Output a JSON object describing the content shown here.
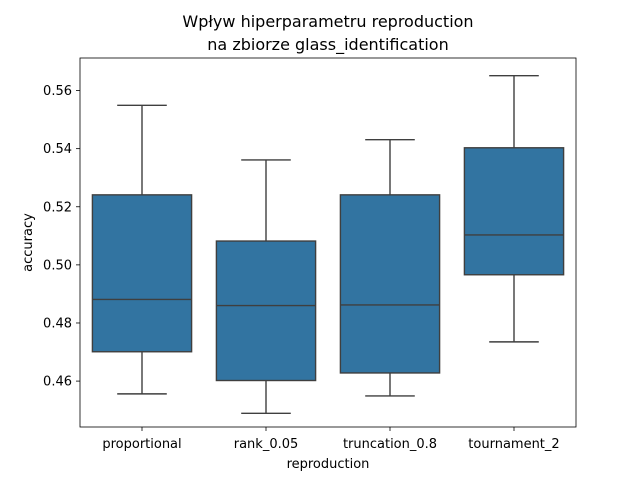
{
  "chart_data": {
    "type": "box",
    "title_lines": [
      "Wpływ hiperparametru reproduction",
      "na zbiorze glass_identification"
    ],
    "xlabel": "reproduction",
    "ylabel": "accuracy",
    "ylim": [
      0.4442,
      0.5712
    ],
    "yticks": [
      0.46,
      0.48,
      0.5,
      0.52,
      0.54,
      0.56
    ],
    "ytick_labels": [
      "0.46",
      "0.48",
      "0.50",
      "0.52",
      "0.54",
      "0.56"
    ],
    "categories": [
      "proportional",
      "rank_0.05",
      "truncation_0.8",
      "tournament_2"
    ],
    "boxes": [
      {
        "min": 0.4556,
        "q1": 0.4701,
        "median": 0.4881,
        "q3": 0.5241,
        "max": 0.5549
      },
      {
        "min": 0.4489,
        "q1": 0.4602,
        "median": 0.486,
        "q3": 0.5082,
        "max": 0.5361
      },
      {
        "min": 0.4549,
        "q1": 0.4628,
        "median": 0.4862,
        "q3": 0.5241,
        "max": 0.5431
      },
      {
        "min": 0.4735,
        "q1": 0.4966,
        "median": 0.5103,
        "q3": 0.5403,
        "max": 0.5651
      }
    ],
    "box_color": "#3274a1",
    "line_color": "#3f3f3f",
    "grid": false,
    "legend": "none"
  }
}
